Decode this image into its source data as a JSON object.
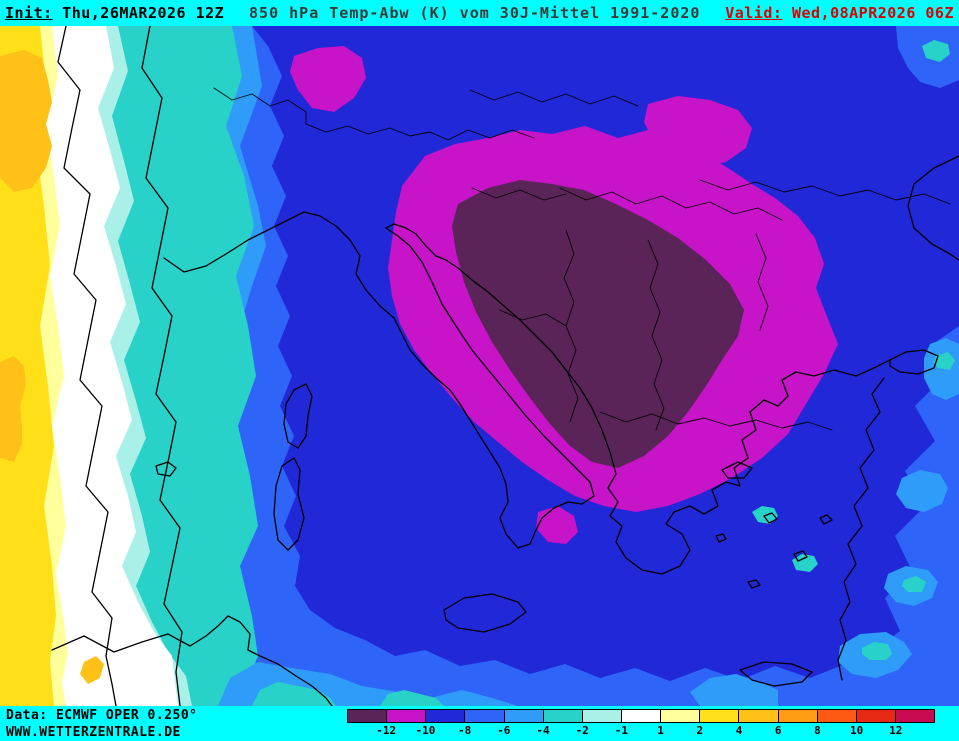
{
  "header": {
    "init_label": "Init:",
    "init_value": " Thu,26MAR2026 12Z",
    "title": "850 hPa Temp-Abw (K) vom 30J-Mittel 1991-2020",
    "valid_label": "Valid:",
    "valid_value": " Wed,08APR2026 06Z"
  },
  "footer": {
    "data_source": "Data: ECMWF OPER 0.250°",
    "website": "WWW.WETTERZENTRALE.DE"
  },
  "legend": {
    "unit": "K",
    "labels": [
      "-12",
      "-10",
      "-8",
      "-6",
      "-4",
      "-2",
      "-1",
      "1",
      "2",
      "4",
      "6",
      "8",
      "10",
      "12"
    ],
    "cell_colors": [
      "#5A2458",
      "#C814C8",
      "#2028D8",
      "#2E64F8",
      "#2E9CF8",
      "#28D2C8",
      "#A8F0E8",
      "#FFFFFF",
      "#FFFF9C",
      "#FFE018",
      "#FFC018",
      "#FF9C14",
      "#FF5A14",
      "#E62814",
      "#C80A50"
    ]
  },
  "palette": {
    "panel": "#00FFFF",
    "headerText": "#000000",
    "titleText": "#3A3A3A",
    "validText": "#DD0000",
    "coast": "#000000",
    "plum": "#5A2458",
    "magenta": "#C814C8",
    "deepBlue": "#2028D8",
    "blue": "#2E64F8",
    "skyBlue": "#2E9CF8",
    "turquoise": "#28D2C8",
    "paleCyan": "#A8F0E8",
    "white": "#FFFFFF",
    "paleYellow": "#FFFF9C",
    "yellow": "#FFE018",
    "orange": "#FFC018"
  },
  "map": {
    "kind": "filled contour temperature anomaly map",
    "region": "Central/Southern Europe, Italy, Balkans, Greece, western Turkey",
    "coldest_core": "below -12 K over central Balkans",
    "warm_band": "+2 to +6 K along western (left) edge"
  }
}
